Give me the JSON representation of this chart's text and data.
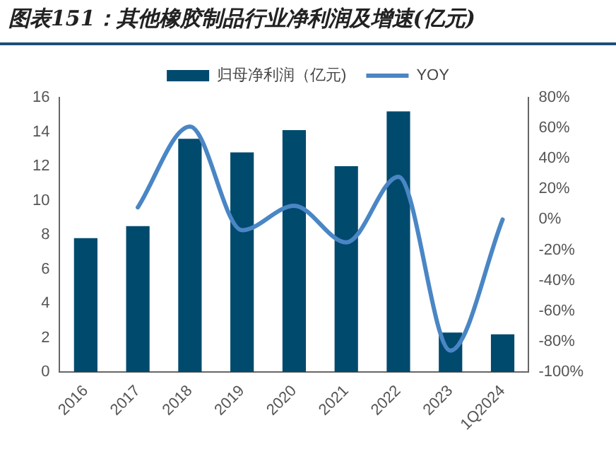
{
  "chart_data": {
    "type": "bar",
    "title": "图表151：其他橡胶制品行业净利润及增速(亿元)",
    "categories": [
      "2016",
      "2017",
      "2018",
      "2019",
      "2020",
      "2021",
      "2022",
      "2023",
      "1Q2024"
    ],
    "series": [
      {
        "name": "归母净利润（亿元)",
        "color": "#004a6e",
        "values": [
          7.8,
          8.5,
          13.6,
          12.8,
          14.1,
          12.0,
          15.2,
          2.3,
          2.2
        ]
      },
      {
        "name": "YOY",
        "type": "line",
        "axis": "y2",
        "color": "#4a86c5",
        "values": [
          null,
          8,
          61,
          -7,
          9,
          -15,
          28,
          -86,
          0
        ]
      }
    ],
    "ylim": [
      0,
      16
    ],
    "yticks": [
      0,
      2,
      4,
      6,
      8,
      10,
      12,
      14,
      16
    ],
    "y2lim": [
      -100,
      80
    ],
    "y2ticks": [
      {
        "value": -100,
        "label": "-100%"
      },
      {
        "value": -80,
        "label": "-80%"
      },
      {
        "value": -60,
        "label": "-60%"
      },
      {
        "value": -40,
        "label": "-40%"
      },
      {
        "value": -20,
        "label": "-20%"
      },
      {
        "value": 0,
        "label": "0%"
      },
      {
        "value": 20,
        "label": "20%"
      },
      {
        "value": 40,
        "label": "40%"
      },
      {
        "value": 60,
        "label": "60%"
      },
      {
        "value": 80,
        "label": "80%"
      }
    ],
    "grid": false,
    "legend": "top",
    "marker": "none",
    "line_style": "solid"
  }
}
